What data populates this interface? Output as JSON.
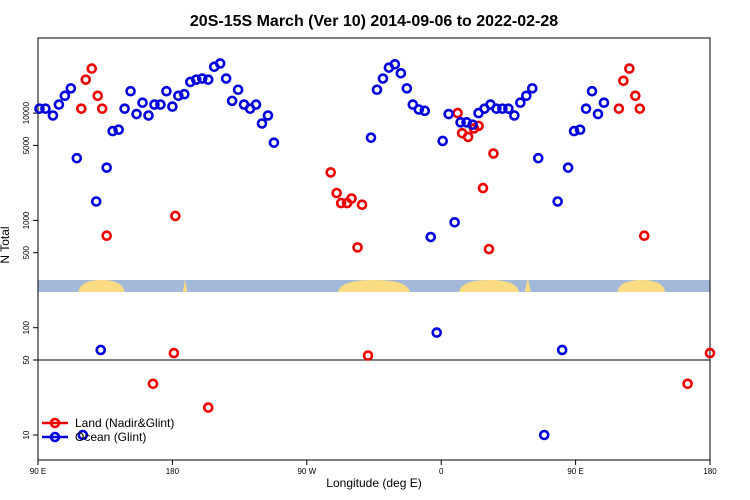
{
  "chart_data": {
    "type": "scatter",
    "title": "20S-15S March (Ver 10)   2014-09-06 to 2022-02-28",
    "xlabel": "Longitude (deg E)",
    "ylabel": "N Total",
    "x_range_deg_east": [
      90,
      450
    ],
    "y_scale": "log",
    "y_ranges": {
      "upper": [
        500,
        50000
      ],
      "lower": [
        5,
        50
      ]
    },
    "x_ticks": [
      {
        "value": 90,
        "label": "90 E"
      },
      {
        "value": 180,
        "label": "180"
      },
      {
        "value": 270,
        "label": "90 W"
      },
      {
        "value": 360,
        "label": "0"
      },
      {
        "value": 450,
        "label": "90 E"
      },
      {
        "value": 540,
        "label": "180"
      }
    ],
    "y_ticks_upper": [
      {
        "value": 500,
        "label": "500"
      },
      {
        "value": 1000,
        "label": "1000"
      },
      {
        "value": 5000,
        "label": "5000"
      },
      {
        "value": 10000,
        "label": "10000"
      }
    ],
    "y_ticks_lower": [
      {
        "value": 10,
        "label": "10"
      },
      {
        "value": 50,
        "label": "50"
      },
      {
        "value": 100,
        "label": "100"
      }
    ],
    "land_mask": {
      "colors": {
        "ocean": "#a3b9d9",
        "land": "#fcdc82"
      },
      "land_segments": [
        [
          117,
          148
        ],
        [
          187,
          190
        ],
        [
          291,
          339
        ],
        [
          372,
          412
        ],
        [
          416,
          420
        ],
        [
          478,
          510
        ]
      ]
    },
    "legend": {
      "position": "bottom-left"
    },
    "series": [
      {
        "name": "Land (Nadir&Glint)",
        "color": "#ee0000",
        "points": [
          {
            "x": 119,
            "y": 11000
          },
          {
            "x": 122,
            "y": 20500
          },
          {
            "x": 126,
            "y": 26000
          },
          {
            "x": 130,
            "y": 14500
          },
          {
            "x": 133,
            "y": 11000
          },
          {
            "x": 136,
            "y": 720
          },
          {
            "x": 167,
            "y": 30
          },
          {
            "x": 181,
            "y": 58
          },
          {
            "x": 182,
            "y": 1100
          },
          {
            "x": 204,
            "y": 18
          },
          {
            "x": 286,
            "y": 2800
          },
          {
            "x": 290,
            "y": 1800
          },
          {
            "x": 293,
            "y": 1450
          },
          {
            "x": 297,
            "y": 1450
          },
          {
            "x": 300,
            "y": 1600
          },
          {
            "x": 304,
            "y": 560
          },
          {
            "x": 307,
            "y": 1400
          },
          {
            "x": 311,
            "y": 55
          },
          {
            "x": 371,
            "y": 10000
          },
          {
            "x": 374,
            "y": 6500
          },
          {
            "x": 378,
            "y": 6000
          },
          {
            "x": 382,
            "y": 7200
          },
          {
            "x": 385,
            "y": 7600
          },
          {
            "x": 388,
            "y": 2000
          },
          {
            "x": 392,
            "y": 540
          },
          {
            "x": 395,
            "y": 4200
          },
          {
            "x": 479,
            "y": 11000
          },
          {
            "x": 482,
            "y": 20000
          },
          {
            "x": 486,
            "y": 26000
          },
          {
            "x": 490,
            "y": 14500
          },
          {
            "x": 493,
            "y": 11000
          },
          {
            "x": 496,
            "y": 720
          },
          {
            "x": 525,
            "y": 30
          },
          {
            "x": 540,
            "y": 58
          }
        ]
      },
      {
        "name": "Ocean (Glint)",
        "color": "#0000dd",
        "points": [
          {
            "x": 91,
            "y": 11000
          },
          {
            "x": 95,
            "y": 11000
          },
          {
            "x": 100,
            "y": 9500
          },
          {
            "x": 104,
            "y": 12000
          },
          {
            "x": 108,
            "y": 14500
          },
          {
            "x": 112,
            "y": 17000
          },
          {
            "x": 116,
            "y": 3800
          },
          {
            "x": 120,
            "y": 10
          },
          {
            "x": 129,
            "y": 1500
          },
          {
            "x": 132,
            "y": 62
          },
          {
            "x": 136,
            "y": 3100
          },
          {
            "x": 140,
            "y": 6800
          },
          {
            "x": 144,
            "y": 7000
          },
          {
            "x": 148,
            "y": 11000
          },
          {
            "x": 152,
            "y": 16000
          },
          {
            "x": 156,
            "y": 9800
          },
          {
            "x": 160,
            "y": 12500
          },
          {
            "x": 164,
            "y": 9500
          },
          {
            "x": 168,
            "y": 12000
          },
          {
            "x": 172,
            "y": 12000
          },
          {
            "x": 176,
            "y": 16000
          },
          {
            "x": 180,
            "y": 11500
          },
          {
            "x": 184,
            "y": 14500
          },
          {
            "x": 188,
            "y": 15000
          },
          {
            "x": 192,
            "y": 19500
          },
          {
            "x": 196,
            "y": 20500
          },
          {
            "x": 200,
            "y": 21000
          },
          {
            "x": 204,
            "y": 20500
          },
          {
            "x": 208,
            "y": 27000
          },
          {
            "x": 212,
            "y": 29000
          },
          {
            "x": 216,
            "y": 21000
          },
          {
            "x": 220,
            "y": 13000
          },
          {
            "x": 224,
            "y": 16500
          },
          {
            "x": 228,
            "y": 12000
          },
          {
            "x": 232,
            "y": 11000
          },
          {
            "x": 236,
            "y": 12000
          },
          {
            "x": 240,
            "y": 8000
          },
          {
            "x": 244,
            "y": 9500
          },
          {
            "x": 248,
            "y": 5300
          },
          {
            "x": 313,
            "y": 5900
          },
          {
            "x": 317,
            "y": 16500
          },
          {
            "x": 321,
            "y": 21000
          },
          {
            "x": 325,
            "y": 26500
          },
          {
            "x": 329,
            "y": 28500
          },
          {
            "x": 333,
            "y": 23500
          },
          {
            "x": 337,
            "y": 17000
          },
          {
            "x": 341,
            "y": 12000
          },
          {
            "x": 345,
            "y": 10800
          },
          {
            "x": 349,
            "y": 10500
          },
          {
            "x": 353,
            "y": 700
          },
          {
            "x": 357,
            "y": 90
          },
          {
            "x": 361,
            "y": 5500
          },
          {
            "x": 365,
            "y": 9800
          },
          {
            "x": 369,
            "y": 960
          },
          {
            "x": 373,
            "y": 8200
          },
          {
            "x": 377,
            "y": 8200
          },
          {
            "x": 381,
            "y": 7800
          },
          {
            "x": 385,
            "y": 10000
          },
          {
            "x": 389,
            "y": 11000
          },
          {
            "x": 393,
            "y": 12000
          },
          {
            "x": 397,
            "y": 11000
          },
          {
            "x": 401,
            "y": 11000
          },
          {
            "x": 405,
            "y": 11000
          },
          {
            "x": 409,
            "y": 9500
          },
          {
            "x": 413,
            "y": 12500
          },
          {
            "x": 417,
            "y": 14500
          },
          {
            "x": 421,
            "y": 17000
          },
          {
            "x": 425,
            "y": 3800
          },
          {
            "x": 429,
            "y": 10
          },
          {
            "x": 438,
            "y": 1500
          },
          {
            "x": 441,
            "y": 62
          },
          {
            "x": 445,
            "y": 3100
          },
          {
            "x": 449,
            "y": 6800
          },
          {
            "x": 453,
            "y": 7000
          },
          {
            "x": 457,
            "y": 11000
          },
          {
            "x": 461,
            "y": 16000
          },
          {
            "x": 465,
            "y": 9800
          },
          {
            "x": 469,
            "y": 12500
          }
        ]
      }
    ]
  }
}
